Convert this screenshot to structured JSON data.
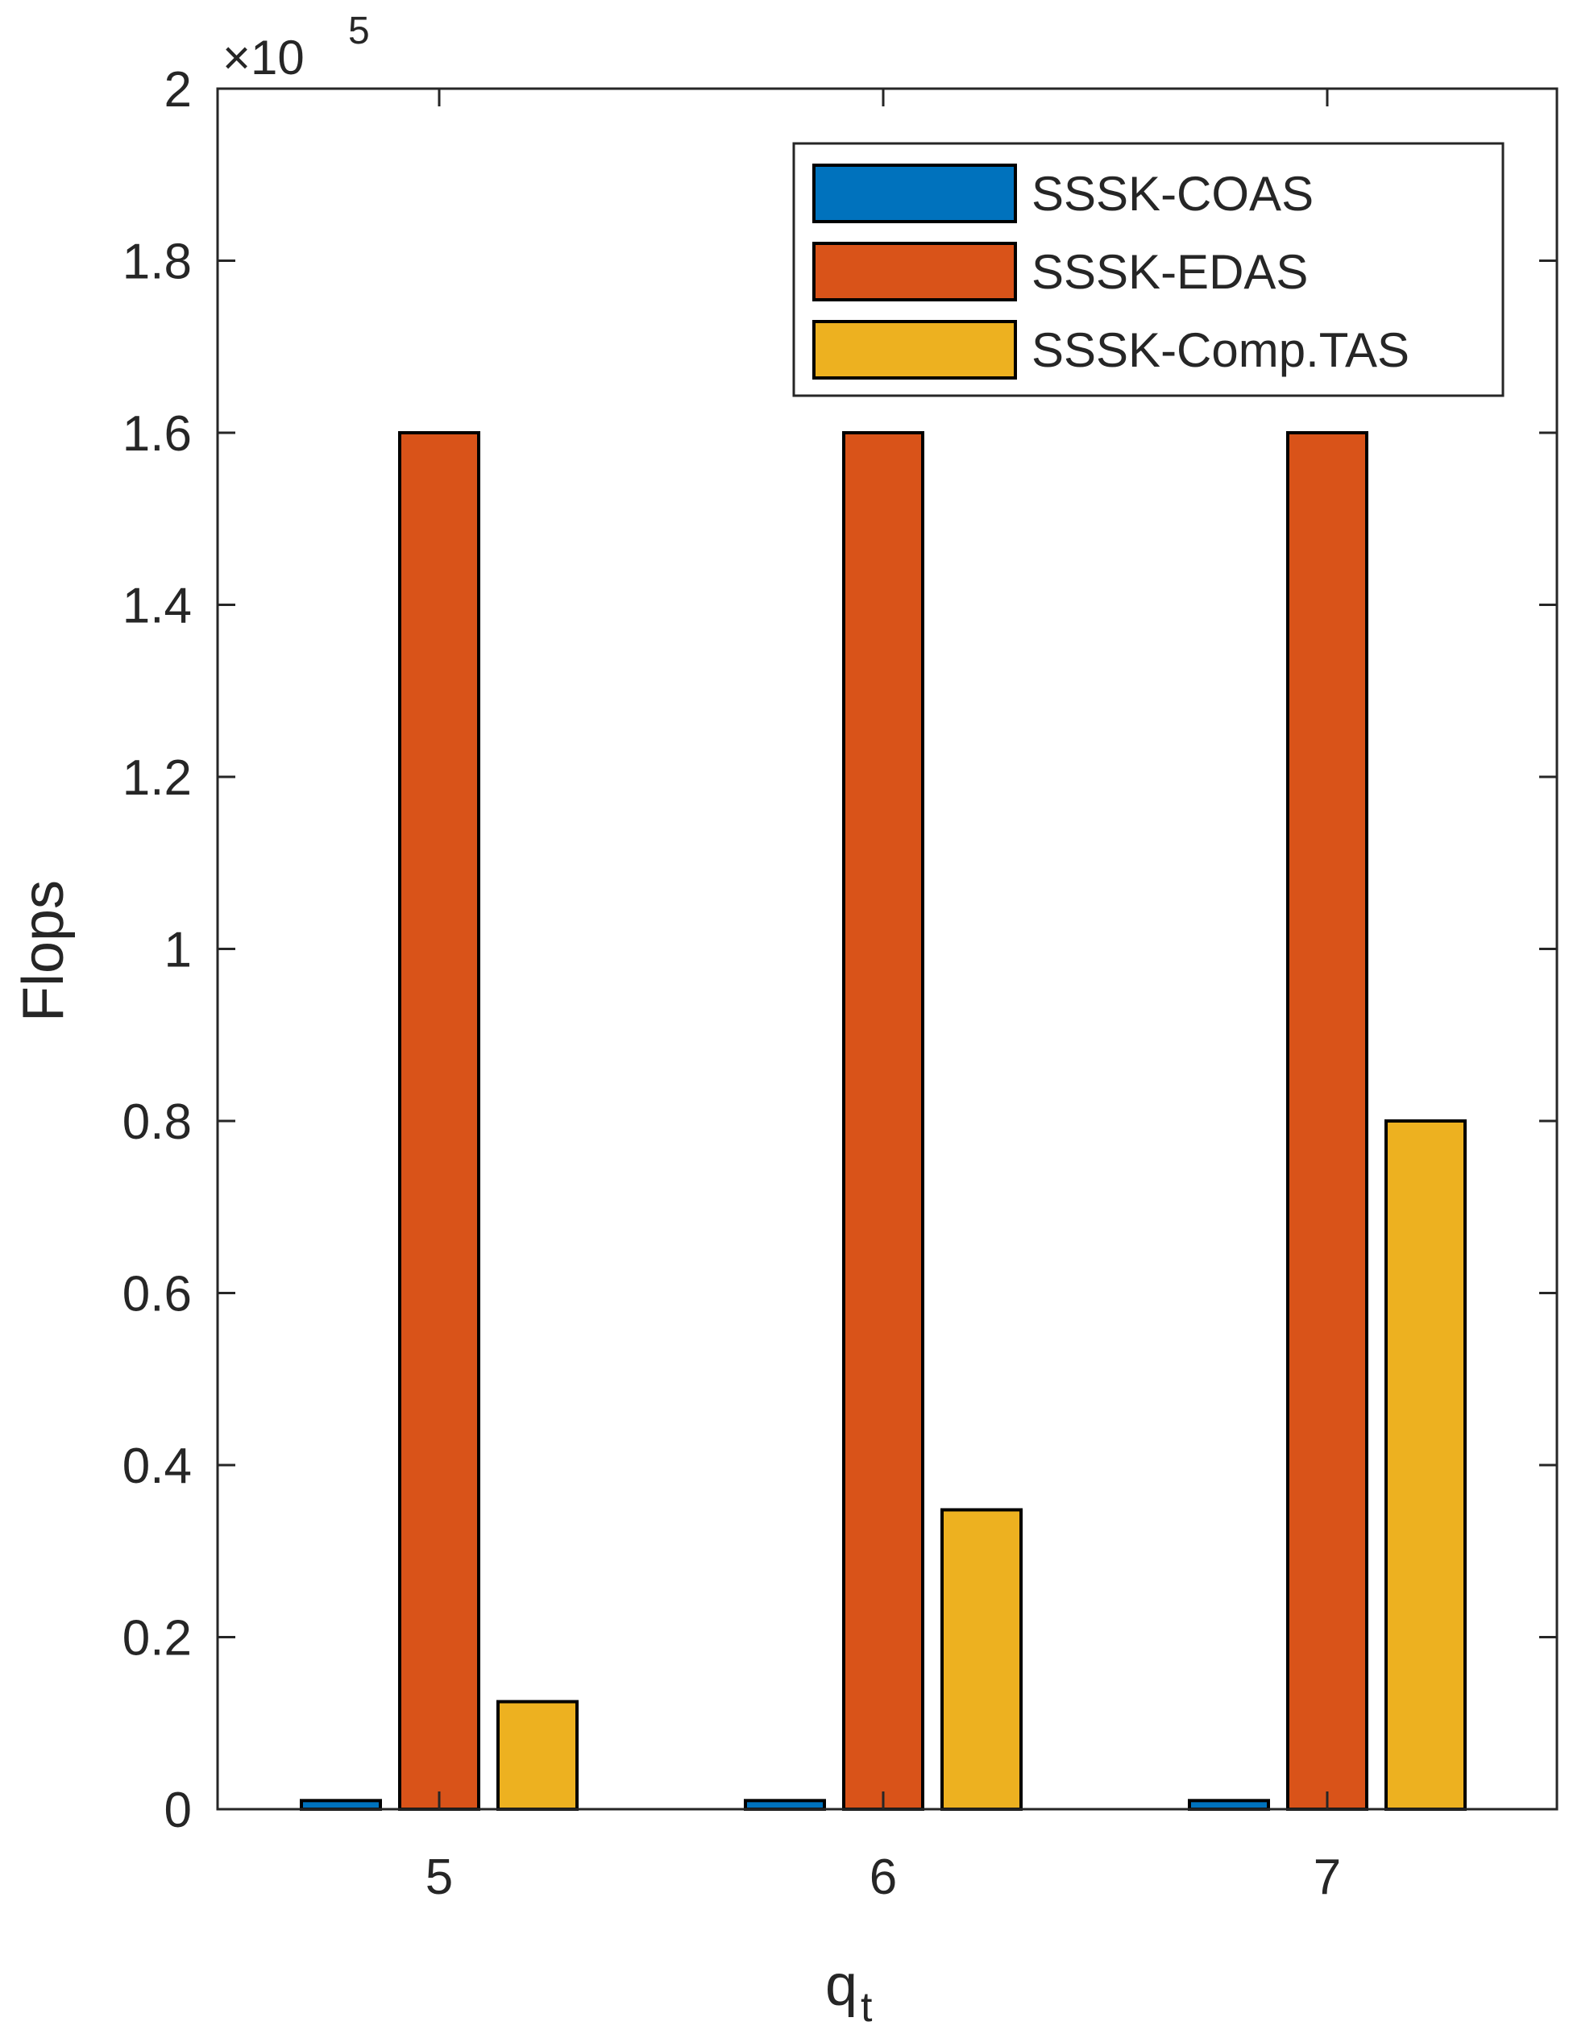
{
  "chart_data": {
    "type": "bar",
    "categories": [
      "5",
      "6",
      "7"
    ],
    "series": [
      {
        "name": "SSSK-COAS",
        "color": "#0072BD",
        "values": [
          1000,
          1000,
          1000
        ]
      },
      {
        "name": "SSSK-EDAS",
        "color": "#D95319",
        "values": [
          160000,
          160000,
          160000
        ]
      },
      {
        "name": "SSSK-Comp.TAS",
        "color": "#EDB120",
        "values": [
          12500,
          34800,
          80000
        ]
      }
    ],
    "ylim": [
      0,
      200000
    ],
    "yticks": [
      0,
      20000,
      40000,
      60000,
      80000,
      100000,
      120000,
      140000,
      160000,
      180000,
      200000
    ],
    "ytick_labels": [
      "0",
      "0.2",
      "0.4",
      "0.6",
      "0.8",
      "1",
      "1.2",
      "1.4",
      "1.6",
      "1.8",
      "2"
    ],
    "exponent_base": "×10",
    "exponent_power": "5",
    "xlabel": "q",
    "xlabel_subscript": "t",
    "ylabel": "Flops",
    "title": "",
    "legend_position": "top-right",
    "grid": false
  }
}
